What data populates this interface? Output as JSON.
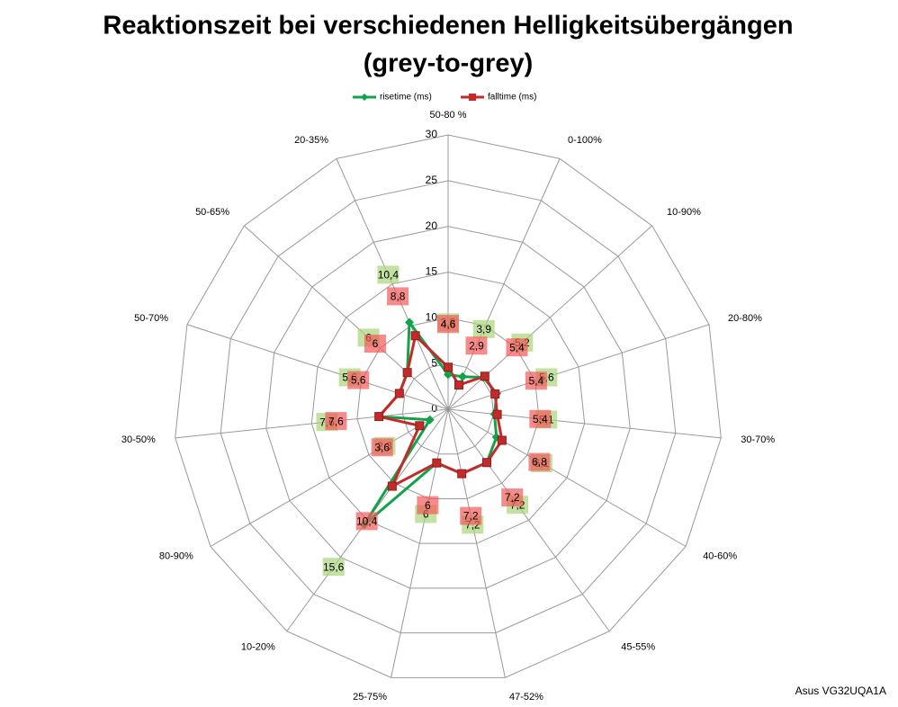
{
  "chart_data": {
    "type": "radar",
    "title": [
      "Reaktionszeit bei verschiedenen Helligkeitsübergängen",
      "(grey-to-grey)"
    ],
    "annotation": "Asus VG32UQA1A",
    "categories": [
      "50-80 %",
      "0-100%",
      "10-90%",
      "20-80%",
      "30-70%",
      "40-60%",
      "45-55%",
      "47-52%",
      "25-75%",
      "10-20%",
      "80-90%",
      "30-50%",
      "50-70%",
      "50-65%",
      "20-35%"
    ],
    "series": [
      {
        "name": "risetime (ms)",
        "color": "#12a34a",
        "label_color": "#a9d67a",
        "values": [
          3.8,
          3.9,
          5.2,
          5.6,
          5.1,
          6.1,
          7.2,
          7.2,
          6,
          15.6,
          2.3,
          7.6,
          5.6,
          6,
          10.4
        ],
        "value_labels": [
          "3,8",
          "3,9",
          "5,2",
          "5,6",
          "5,1",
          "6,1",
          "7,2",
          "7,2",
          "6",
          "15,6",
          "2,3",
          "7,6",
          "5,6",
          "6",
          "10,4"
        ]
      },
      {
        "name": "falltime (ms)",
        "color": "#c42a2a",
        "label_color": "#f45a5a",
        "values": [
          4.6,
          2.9,
          5.4,
          5.4,
          5.4,
          6.8,
          7.2,
          7.2,
          6,
          10.4,
          3.6,
          7.6,
          5.6,
          6,
          8.8
        ],
        "value_labels": [
          "4,6",
          "2,9",
          "5,4",
          "5,4",
          "5,4",
          "6,8",
          "7,2",
          "7,2",
          "6",
          "10,4",
          "3,6",
          "7,6",
          "5,6",
          "6",
          "8,8"
        ]
      }
    ],
    "ylim": [
      0,
      30
    ],
    "yticks": [
      0,
      5,
      10,
      15,
      20,
      25,
      30
    ],
    "grid": true,
    "legend": "top"
  }
}
